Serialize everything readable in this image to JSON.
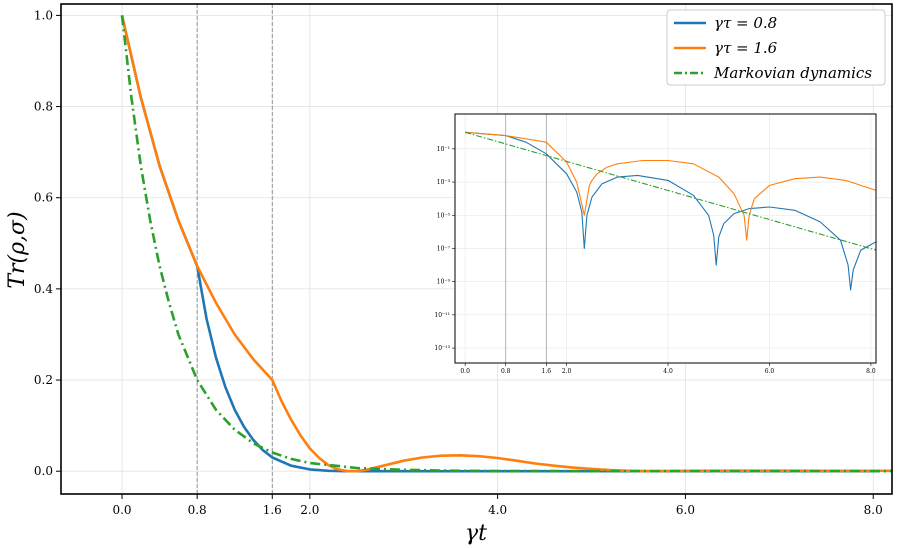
{
  "chart_data": {
    "type": "line",
    "xlabel": "γt",
    "ylabel": "Tr(ρ,σ)",
    "xlim": [
      -0.65,
      8.2
    ],
    "ylim": [
      -0.05,
      1.025
    ],
    "x_ticks": [
      {
        "value": 0.0,
        "label": "0.0"
      },
      {
        "value": 0.8,
        "label": "0.8"
      },
      {
        "value": 1.6,
        "label": "1.6"
      },
      {
        "value": 2.0,
        "label": "2.0"
      },
      {
        "value": 4.0,
        "label": "4.0"
      },
      {
        "value": 6.0,
        "label": "6.0"
      },
      {
        "value": 8.0,
        "label": "8.0"
      }
    ],
    "y_ticks": [
      {
        "value": 0.0,
        "label": "0.0"
      },
      {
        "value": 0.2,
        "label": "0.2"
      },
      {
        "value": 0.4,
        "label": "0.4"
      },
      {
        "value": 0.6,
        "label": "0.6"
      },
      {
        "value": 0.8,
        "label": "0.8"
      },
      {
        "value": 1.0,
        "label": "1.0"
      }
    ],
    "grid": true,
    "vlines": [
      0.8,
      1.6
    ],
    "legend": {
      "position": "top-right",
      "entries": [
        {
          "label": "γτ = 0.8",
          "color": "#1f77b4",
          "style": "solid"
        },
        {
          "label": "γτ = 1.6",
          "color": "#ff7f0e",
          "style": "solid"
        },
        {
          "label": "Markovian dynamics",
          "color": "#2ca02c",
          "style": "dashdot"
        }
      ]
    },
    "series": [
      {
        "name": "γτ = 0.8",
        "color": "#1f77b4",
        "style": "solid",
        "x": [
          0.0,
          0.2,
          0.4,
          0.6,
          0.8,
          0.9,
          1.0,
          1.1,
          1.2,
          1.3,
          1.4,
          1.5,
          1.6,
          1.8,
          2.0,
          2.2,
          2.4,
          2.6,
          3.0,
          4.0,
          5.0,
          6.0,
          7.0,
          8.0
        ],
        "y": [
          1.0,
          0.82,
          0.67,
          0.55,
          0.45,
          0.335,
          0.25,
          0.185,
          0.135,
          0.097,
          0.068,
          0.046,
          0.03,
          0.012,
          0.004,
          0.001,
          0.0,
          0.0,
          0.0,
          0.0,
          0.0,
          0.0,
          0.0,
          0.0
        ]
      },
      {
        "name": "γτ = 1.6",
        "color": "#ff7f0e",
        "style": "solid",
        "x": [
          0.0,
          0.2,
          0.4,
          0.6,
          0.8,
          1.0,
          1.2,
          1.4,
          1.6,
          1.7,
          1.8,
          1.9,
          2.0,
          2.1,
          2.2,
          2.3,
          2.4,
          2.5,
          2.6,
          2.8,
          3.0,
          3.2,
          3.4,
          3.6,
          3.8,
          4.0,
          4.2,
          4.4,
          4.6,
          4.8,
          5.0,
          5.2,
          5.4,
          5.6,
          5.8,
          6.0,
          6.5,
          7.0,
          7.5,
          8.2
        ],
        "y": [
          1.0,
          0.82,
          0.67,
          0.55,
          0.45,
          0.37,
          0.3,
          0.245,
          0.2,
          0.153,
          0.113,
          0.079,
          0.05,
          0.029,
          0.013,
          0.004,
          0.0,
          0.0,
          0.003,
          0.013,
          0.023,
          0.03,
          0.034,
          0.035,
          0.033,
          0.029,
          0.023,
          0.017,
          0.012,
          0.008,
          0.005,
          0.0025,
          0.001,
          0.0,
          0.0005,
          0.001,
          0.0012,
          0.0012,
          0.001,
          0.001
        ]
      },
      {
        "name": "Markovian dynamics",
        "color": "#2ca02c",
        "style": "dashdot",
        "x": [
          0.0,
          0.1,
          0.2,
          0.3,
          0.4,
          0.5,
          0.6,
          0.8,
          1.0,
          1.2,
          1.4,
          1.6,
          1.8,
          2.0,
          2.5,
          3.0,
          3.5,
          4.0,
          5.0,
          6.0,
          7.0,
          8.2
        ],
        "y": [
          1.0,
          0.82,
          0.67,
          0.55,
          0.45,
          0.37,
          0.3,
          0.2,
          0.135,
          0.091,
          0.061,
          0.041,
          0.027,
          0.018,
          0.007,
          0.003,
          0.0012,
          0.0005,
          0.0,
          0.0,
          0.0,
          0.0
        ]
      }
    ],
    "inset": {
      "type": "line",
      "yscale": "log",
      "xlim": [
        -0.2,
        8.1
      ],
      "ylim_log10": [
        -13.9,
        1.1
      ],
      "x_ticks": [
        {
          "value": 0.0,
          "label": "0.0"
        },
        {
          "value": 0.8,
          "label": "0.8"
        },
        {
          "value": 1.6,
          "label": "1.6"
        },
        {
          "value": 2.0,
          "label": "2.0"
        },
        {
          "value": 4.0,
          "label": "4.0"
        },
        {
          "value": 6.0,
          "label": "6.0"
        },
        {
          "value": 8.0,
          "label": "8.0"
        }
      ],
      "y_ticks_log10": [
        {
          "value": -1,
          "label": "10⁻¹"
        },
        {
          "value": -3,
          "label": "10⁻³"
        },
        {
          "value": -5,
          "label": "10⁻⁵"
        },
        {
          "value": -7,
          "label": "10⁻⁷"
        },
        {
          "value": -9,
          "label": "10⁻⁹"
        },
        {
          "value": -11,
          "label": "10⁻¹¹"
        },
        {
          "value": -13,
          "label": "10⁻¹³"
        }
      ],
      "grid": true,
      "vlines": [
        0.8,
        1.6
      ],
      "series": [
        {
          "name": "γτ = 0.8",
          "color": "#1f77b4",
          "x": [
            0.0,
            0.8,
            1.2,
            1.6,
            2.0,
            2.2,
            2.3,
            2.35,
            2.4,
            2.5,
            2.7,
            3.0,
            3.4,
            4.0,
            4.5,
            4.8,
            4.9,
            4.95,
            5.0,
            5.1,
            5.3,
            5.6,
            6.0,
            6.5,
            7.0,
            7.4,
            7.55,
            7.6,
            7.65,
            7.8,
            8.1
          ],
          "y_log10": [
            0.0,
            -0.2,
            -0.6,
            -1.3,
            -2.5,
            -3.6,
            -4.8,
            -7.0,
            -5.0,
            -3.9,
            -3.1,
            -2.7,
            -2.6,
            -2.9,
            -3.8,
            -5.0,
            -6.2,
            -8.0,
            -6.3,
            -5.5,
            -4.9,
            -4.6,
            -4.5,
            -4.7,
            -5.4,
            -6.5,
            -8.0,
            -9.5,
            -8.3,
            -7.1,
            -6.6
          ]
        },
        {
          "name": "γτ = 1.6",
          "color": "#ff7f0e",
          "x": [
            0.0,
            0.8,
            1.6,
            2.0,
            2.2,
            2.35,
            2.45,
            2.5,
            2.6,
            2.8,
            3.0,
            3.5,
            4.0,
            4.5,
            5.0,
            5.3,
            5.5,
            5.55,
            5.6,
            5.7,
            6.0,
            6.5,
            7.0,
            7.5,
            8.1
          ],
          "y_log10": [
            0.0,
            -0.2,
            -0.6,
            -1.8,
            -3.0,
            -5.0,
            -3.2,
            -2.9,
            -2.5,
            -2.1,
            -1.9,
            -1.7,
            -1.7,
            -1.9,
            -2.7,
            -3.7,
            -5.0,
            -6.5,
            -5.0,
            -4.0,
            -3.2,
            -2.8,
            -2.7,
            -2.9,
            -3.5
          ]
        },
        {
          "name": "Markovian dynamics",
          "color": "#2ca02c",
          "x": [
            0.0,
            8.1
          ],
          "y_log10": [
            0.0,
            -7.1
          ]
        }
      ]
    }
  }
}
